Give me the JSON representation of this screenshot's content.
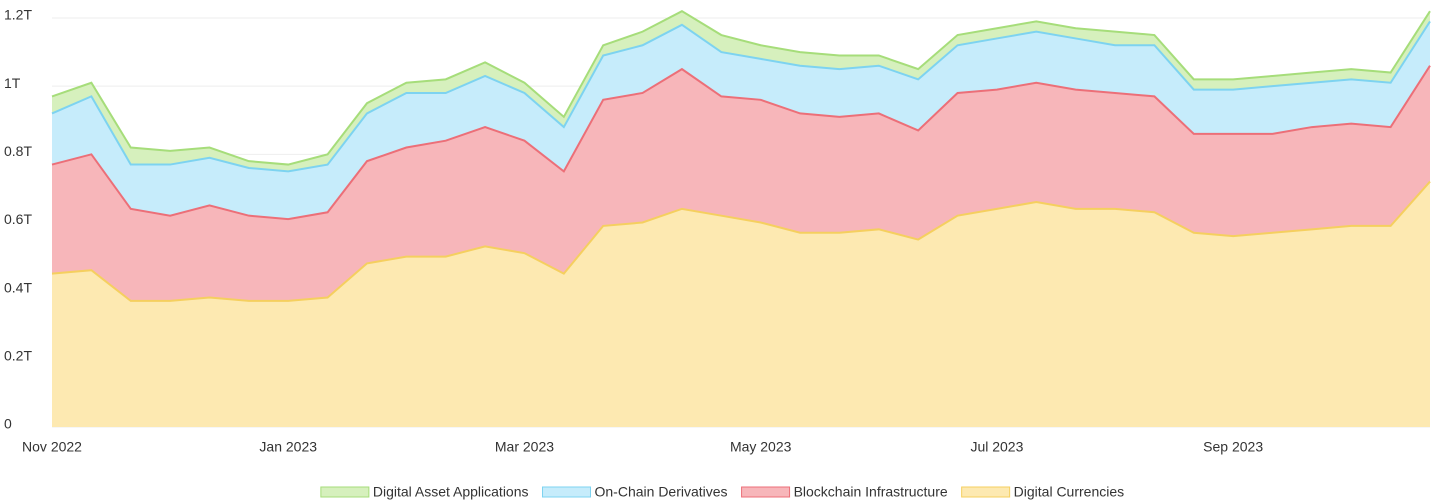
{
  "chart_data": {
    "type": "stacked_area",
    "categories": [
      "Nov 2022",
      null,
      null,
      null,
      null,
      null,
      "Jan 2023",
      null,
      null,
      null,
      null,
      null,
      "Mar 2023",
      null,
      null,
      null,
      null,
      null,
      "May 2023",
      null,
      null,
      null,
      null,
      null,
      "Jul 2023",
      null,
      null,
      null,
      null,
      null,
      "Sep 2023",
      null,
      null,
      null,
      null,
      null
    ],
    "series": [
      {
        "name": "Digital Asset Applications",
        "color": "#a6dd7a",
        "fill": "#d6f0bd",
        "values": [
          0.05,
          0.04,
          0.05,
          0.04,
          0.03,
          0.02,
          0.02,
          0.03,
          0.03,
          0.03,
          0.04,
          0.04,
          0.03,
          0.03,
          0.03,
          0.04,
          0.04,
          0.05,
          0.04,
          0.04,
          0.04,
          0.03,
          0.03,
          0.03,
          0.03,
          0.03,
          0.03,
          0.04,
          0.03,
          0.03,
          0.03,
          0.03,
          0.03,
          0.03,
          0.03,
          0.03
        ]
      },
      {
        "name": "On-Chain Derivatives",
        "color": "#7dd3f0",
        "fill": "#c6ecfb",
        "values": [
          0.15,
          0.17,
          0.13,
          0.15,
          0.14,
          0.14,
          0.14,
          0.14,
          0.14,
          0.16,
          0.14,
          0.15,
          0.14,
          0.13,
          0.13,
          0.14,
          0.13,
          0.13,
          0.12,
          0.14,
          0.14,
          0.14,
          0.15,
          0.14,
          0.15,
          0.15,
          0.15,
          0.14,
          0.15,
          0.13,
          0.13,
          0.14,
          0.13,
          0.13,
          0.13,
          0.13
        ]
      },
      {
        "name": "Blockchain Infrastructure",
        "color": "#ec6f78",
        "fill": "#f7b6ba",
        "values": [
          0.32,
          0.34,
          0.27,
          0.25,
          0.27,
          0.25,
          0.24,
          0.25,
          0.3,
          0.32,
          0.34,
          0.35,
          0.33,
          0.3,
          0.37,
          0.38,
          0.41,
          0.35,
          0.36,
          0.35,
          0.34,
          0.34,
          0.32,
          0.36,
          0.35,
          0.35,
          0.35,
          0.34,
          0.34,
          0.29,
          0.3,
          0.29,
          0.3,
          0.3,
          0.29,
          0.34
        ]
      },
      {
        "name": "Digital Currencies",
        "color": "#f5cf5f",
        "fill": "#fde9b1",
        "values": [
          0.45,
          0.46,
          0.37,
          0.37,
          0.38,
          0.37,
          0.37,
          0.38,
          0.48,
          0.5,
          0.5,
          0.53,
          0.51,
          0.45,
          0.59,
          0.6,
          0.64,
          0.62,
          0.6,
          0.57,
          0.57,
          0.58,
          0.55,
          0.62,
          0.64,
          0.66,
          0.64,
          0.64,
          0.63,
          0.57,
          0.56,
          0.57,
          0.58,
          0.59,
          0.59,
          0.72
        ]
      }
    ],
    "ylim": [
      0,
      1.2
    ],
    "yticks": [
      0,
      {
        "value": 0.2,
        "label": "0.2T"
      },
      {
        "value": 0.4,
        "label": "0.4T"
      },
      {
        "value": 0.6,
        "label": "0.6T"
      },
      {
        "value": 0.8,
        "label": "0.8T"
      },
      {
        "value": 1,
        "label": "1T"
      },
      {
        "value": 1.2,
        "label": "1.2T"
      }
    ],
    "grid": true
  }
}
